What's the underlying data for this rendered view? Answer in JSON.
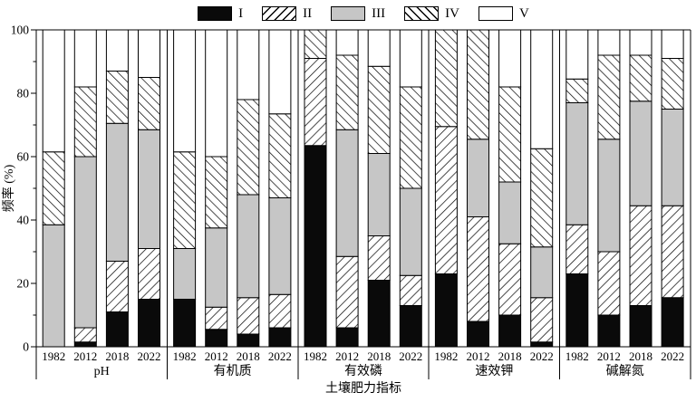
{
  "legend": {
    "items": [
      {
        "label": "I",
        "swatch": "black"
      },
      {
        "label": "II",
        "swatch": "hatch-fwd"
      },
      {
        "label": "III",
        "swatch": "gray"
      },
      {
        "label": "IV",
        "swatch": "hatch-back"
      },
      {
        "label": "V",
        "swatch": "white"
      }
    ]
  },
  "axes": {
    "y_label": "频率 (%)",
    "x_label": "土壤肥力指标",
    "y_major": [
      0,
      20,
      40,
      60,
      80,
      100
    ],
    "y_minor": [
      10,
      30,
      50,
      70,
      90
    ],
    "ylim": [
      0,
      100
    ]
  },
  "chart_data": {
    "type": "bar",
    "stacked": true,
    "unit": "percent",
    "title": "",
    "xlabel": "土壤肥力指标",
    "ylabel": "频率 (%)",
    "ylim": [
      0,
      100
    ],
    "grid": false,
    "legend_position": "top-center",
    "series_order": [
      "I",
      "II",
      "III",
      "IV",
      "V"
    ],
    "series_styles": {
      "I": {
        "fill": "#0a0a0a",
        "hatch": null
      },
      "II": {
        "fill": "#ffffff",
        "hatch": "fwd"
      },
      "III": {
        "fill": "#c6c6c6",
        "hatch": null
      },
      "IV": {
        "fill": "#ffffff",
        "hatch": "back"
      },
      "V": {
        "fill": "#ffffff",
        "hatch": null
      }
    },
    "years": [
      "1982",
      "2012",
      "2018",
      "2022"
    ],
    "groups": [
      {
        "label": "pH",
        "bars": [
          {
            "year": "1982",
            "values": {
              "I": 0,
              "II": 0,
              "III": 38.5,
              "IV": 23,
              "V": 38.5
            }
          },
          {
            "year": "2012",
            "values": {
              "I": 1.5,
              "II": 4.5,
              "III": 54,
              "IV": 22,
              "V": 18
            }
          },
          {
            "year": "2018",
            "values": {
              "I": 11,
              "II": 16,
              "III": 43.5,
              "IV": 16.5,
              "V": 13
            }
          },
          {
            "year": "2022",
            "values": {
              "I": 15,
              "II": 16,
              "III": 37.5,
              "IV": 16.5,
              "V": 15
            }
          }
        ]
      },
      {
        "label": "有机质",
        "bars": [
          {
            "year": "1982",
            "values": {
              "I": 15,
              "II": 0,
              "III": 16,
              "IV": 30.5,
              "V": 38.5
            }
          },
          {
            "year": "2012",
            "values": {
              "I": 5.5,
              "II": 7,
              "III": 25,
              "IV": 22.5,
              "V": 40
            }
          },
          {
            "year": "2018",
            "values": {
              "I": 4,
              "II": 11.5,
              "III": 32.5,
              "IV": 30,
              "V": 22
            }
          },
          {
            "year": "2022",
            "values": {
              "I": 6,
              "II": 10.5,
              "III": 30.5,
              "IV": 26.5,
              "V": 26.5
            }
          }
        ]
      },
      {
        "label": "有效磷",
        "bars": [
          {
            "year": "1982",
            "values": {
              "I": 63.5,
              "II": 27.5,
              "III": 0,
              "IV": 9,
              "V": 0
            }
          },
          {
            "year": "2012",
            "values": {
              "I": 6,
              "II": 22.5,
              "III": 40,
              "IV": 23.5,
              "V": 8
            }
          },
          {
            "year": "2018",
            "values": {
              "I": 21,
              "II": 14,
              "III": 26,
              "IV": 27.5,
              "V": 11.5
            }
          },
          {
            "year": "2022",
            "values": {
              "I": 13,
              "II": 9.5,
              "III": 27.5,
              "IV": 32,
              "V": 18
            }
          }
        ]
      },
      {
        "label": "速效钾",
        "bars": [
          {
            "year": "1982",
            "values": {
              "I": 23,
              "II": 46.5,
              "III": 0,
              "IV": 30.5,
              "V": 0
            }
          },
          {
            "year": "2012",
            "values": {
              "I": 8,
              "II": 33,
              "III": 24.5,
              "IV": 34.5,
              "V": 0
            }
          },
          {
            "year": "2018",
            "values": {
              "I": 10,
              "II": 22.5,
              "III": 19.5,
              "IV": 30,
              "V": 18
            }
          },
          {
            "year": "2022",
            "values": {
              "I": 1.5,
              "II": 14,
              "III": 16,
              "IV": 31,
              "V": 37.5
            }
          }
        ]
      },
      {
        "label": "碱解氮",
        "bars": [
          {
            "year": "1982",
            "values": {
              "I": 23,
              "II": 15.5,
              "III": 38.5,
              "IV": 7.5,
              "V": 15.5
            }
          },
          {
            "year": "2012",
            "values": {
              "I": 10,
              "II": 20,
              "III": 35.5,
              "IV": 26.5,
              "V": 8
            }
          },
          {
            "year": "2018",
            "values": {
              "I": 13,
              "II": 31.5,
              "III": 33,
              "IV": 14.5,
              "V": 8
            }
          },
          {
            "year": "2022",
            "values": {
              "I": 15.5,
              "II": 29,
              "III": 30.5,
              "IV": 16,
              "V": 9
            }
          }
        ]
      }
    ],
    "colors": {
      "black": "#0a0a0a",
      "gray": "#c6c6c6",
      "white": "#ffffff",
      "stroke": "#000000"
    }
  }
}
